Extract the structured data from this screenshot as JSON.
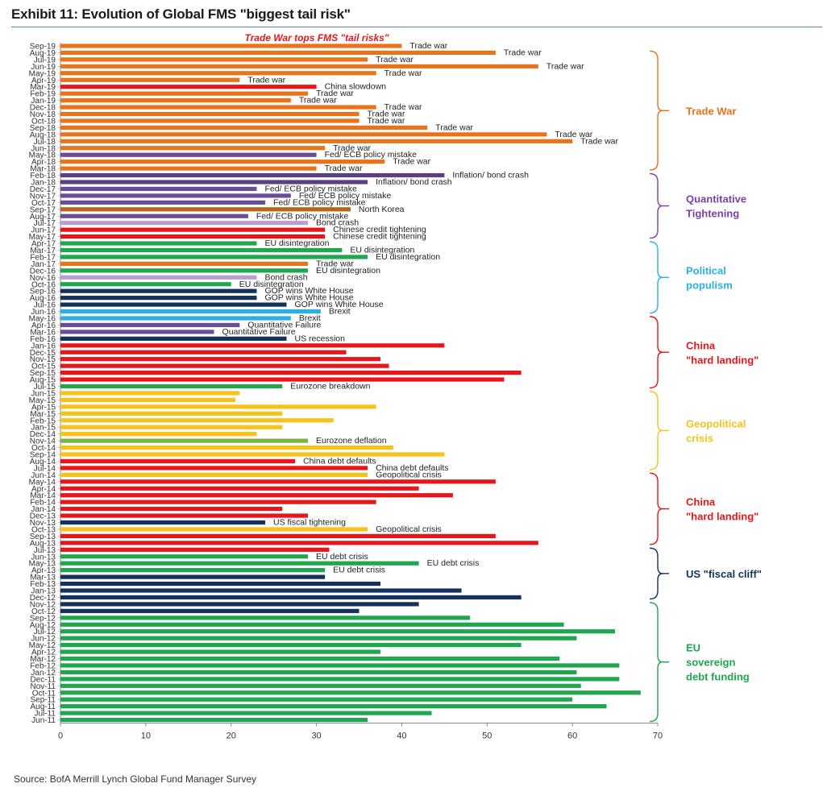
{
  "header": {
    "title": "Exhibit 11: Evolution of Global FMS \"biggest tail risk\""
  },
  "footer": {
    "source": "Source: BofA Merrill Lynch Global Fund Manager Survey"
  },
  "colors": {
    "Trade war": "#e8731b",
    "China slowdown": "#e8161a",
    "Fed/ ECB policy mistake": "#6b4c96",
    "Inflation/ bond crash": "#5a3f82",
    "North Korea": "#b8651c",
    "Bond crash": "#b6a0cf",
    "Chinese credit tightening": "#e8161a",
    "EU disintegration": "#1fa64f",
    "GOP wins White House": "#14315e",
    "Brexit": "#2bb0e6",
    "Quantitative Failure": "#6b4c96",
    "US recession": "#14315e",
    "China hard landing": "#e8161a",
    "Eurozone breakdown": "#1fa64f",
    "Geopolitical crisis": "#f7c21b",
    "Eurozone deflation": "#7cb342",
    "China debt defaults": "#e8161a",
    "US fiscal tightening": "#14315e",
    "EU debt crisis": "#1fa64f",
    "US fiscal cliff": "#14315e",
    "EU sovereign debt funding": "#1fa64f"
  },
  "chart_data": {
    "type": "bar",
    "orientation": "horizontal",
    "title": "Trade War tops FMS \"tail risks\"",
    "xlim": [
      0,
      70
    ],
    "xticks": [
      0,
      10,
      20,
      30,
      40,
      50,
      60,
      70
    ],
    "categories": [
      "Sep-19",
      "Aug-19",
      "Jul-19",
      "Jun-19",
      "May-19",
      "Apr-19",
      "Mar-19",
      "Feb-19",
      "Jan-19",
      "Dec-18",
      "Nov-18",
      "Oct-18",
      "Sep-18",
      "Aug-18",
      "Jul-18",
      "Jun-18",
      "May-18",
      "Apr-18",
      "Mar-18",
      "Feb-18",
      "Jan-18",
      "Dec-17",
      "Nov-17",
      "Oct-17",
      "Sep-17",
      "Aug-17",
      "Jul-17",
      "Jun-17",
      "May-17",
      "Apr-17",
      "Mar-17",
      "Feb-17",
      "Jan-17",
      "Dec-16",
      "Nov-16",
      "Oct-16",
      "Sep-16",
      "Aug-16",
      "Jul-16",
      "Jun-16",
      "May-16",
      "Apr-16",
      "Mar-16",
      "Feb-16",
      "Jan-16",
      "Dec-15",
      "Nov-15",
      "Oct-15",
      "Sep-15",
      "Aug-15",
      "Jul-15",
      "Jun-15",
      "May-15",
      "Apr-15",
      "Mar-15",
      "Feb-15",
      "Jan-15",
      "Dec-14",
      "Nov-14",
      "Oct-14",
      "Sep-14",
      "Aug-14",
      "Jul-14",
      "Jun-14",
      "May-14",
      "Apr-14",
      "Mar-14",
      "Feb-14",
      "Jan-14",
      "Dec-13",
      "Nov-13",
      "Oct-13",
      "Sep-13",
      "Aug-13",
      "Jul-13",
      "Jun-13",
      "May-13",
      "Apr-13",
      "Mar-13",
      "Feb-13",
      "Jan-13",
      "Dec-12",
      "Nov-12",
      "Oct-12",
      "Sep-12",
      "Aug-12",
      "Jul-12",
      "Jun-12",
      "May-12",
      "Apr-12",
      "Mar-12",
      "Feb-12",
      "Jan-12",
      "Dec-11",
      "Nov-11",
      "Oct-11",
      "Sep-11",
      "Aug-11",
      "Jul-11",
      "Jun-11"
    ],
    "values": [
      40,
      51,
      36,
      56,
      37,
      21,
      30,
      29,
      27,
      37,
      35,
      35,
      43,
      57,
      60,
      31,
      30,
      38,
      30,
      45,
      36,
      23,
      27,
      24,
      34,
      22,
      29,
      31,
      31,
      23,
      33,
      36,
      29,
      29,
      23,
      20,
      23,
      23,
      26.5,
      30.5,
      27,
      21,
      18,
      26.5,
      45,
      33.5,
      37.5,
      38.5,
      54,
      52,
      26,
      21,
      20.5,
      37,
      26,
      32,
      26,
      23,
      29,
      39,
      45,
      27.5,
      36,
      36,
      51,
      42,
      46,
      37,
      26,
      29,
      24,
      36,
      51,
      56,
      31.5,
      29,
      42,
      31,
      31,
      37.5,
      47,
      54,
      42,
      35,
      48,
      59,
      65,
      60.5,
      54,
      37.5,
      58.5,
      65.5,
      60.5,
      65.5,
      61,
      68,
      60,
      64,
      43.5,
      36
    ],
    "risks": [
      "Trade war",
      "Trade war",
      "Trade war",
      "Trade war",
      "Trade war",
      "Trade war",
      "China slowdown",
      "Trade war",
      "Trade war",
      "Trade war",
      "Trade war",
      "Trade war",
      "Trade war",
      "Trade war",
      "Trade war",
      "Trade war",
      "Fed/ ECB policy mistake",
      "Trade war",
      "Trade war",
      "Inflation/ bond crash",
      "Inflation/ bond crash",
      "Fed/ ECB policy mistake",
      "Fed/ ECB policy mistake",
      "Fed/ ECB policy mistake",
      "North Korea",
      "Fed/ ECB policy mistake",
      "Bond crash",
      "Chinese credit tightening",
      "Chinese credit tightening",
      "EU disintegration",
      "EU disintegration",
      "EU disintegration",
      "Trade war",
      "EU disintegration",
      "Bond crash",
      "EU disintegration",
      "GOP wins White House",
      "GOP wins White House",
      "GOP wins White House",
      "Brexit",
      "Brexit",
      "Quantitative Failure",
      "Quantitative Failure",
      "US recession",
      "China hard landing",
      "China hard landing",
      "China hard landing",
      "China hard landing",
      "China hard landing",
      "China hard landing",
      "Eurozone breakdown",
      "Geopolitical crisis",
      "Geopolitical crisis",
      "Geopolitical crisis",
      "Geopolitical crisis",
      "Geopolitical crisis",
      "Geopolitical crisis",
      "Geopolitical crisis",
      "Eurozone deflation",
      "Geopolitical crisis",
      "Geopolitical crisis",
      "China debt defaults",
      "China debt defaults",
      "Geopolitical crisis",
      "China hard landing",
      "China hard landing",
      "China hard landing",
      "China hard landing",
      "China hard landing",
      "China hard landing",
      "US fiscal tightening",
      "Geopolitical crisis",
      "China hard landing",
      "China hard landing",
      "China hard landing",
      "EU debt crisis",
      "EU debt crisis",
      "EU debt crisis",
      "US fiscal cliff",
      "US fiscal cliff",
      "US fiscal cliff",
      "US fiscal cliff",
      "US fiscal cliff",
      "US fiscal cliff",
      "EU sovereign debt funding",
      "EU sovereign debt funding",
      "EU sovereign debt funding",
      "EU sovereign debt funding",
      "EU sovereign debt funding",
      "EU sovereign debt funding",
      "EU sovereign debt funding",
      "EU sovereign debt funding",
      "EU sovereign debt funding",
      "EU sovereign debt funding",
      "EU sovereign debt funding",
      "EU sovereign debt funding",
      "EU sovereign debt funding",
      "EU sovereign debt funding",
      "EU sovereign debt funding",
      "EU sovereign debt funding"
    ],
    "bar_labels": [
      "Trade war",
      "Trade war",
      "Trade war",
      "Trade war",
      "Trade war",
      "Trade war",
      "China slowdown",
      "Trade war",
      "Trade war",
      "Trade war",
      "Trade war",
      "Trade war",
      "Trade war",
      "Trade war",
      "Trade war",
      "Trade war",
      "Fed/ ECB policy mistake",
      "Trade war",
      "Trade war",
      "Inflation/ bond crash",
      "Inflation/ bond crash",
      "Fed/ ECB policy mistake",
      "Fed/ ECB policy mistake",
      "Fed/ ECB policy mistake",
      "North Korea",
      "Fed/ ECB policy mistake",
      "Bond crash",
      "Chinese credit tightening",
      "Chinese credit tightening",
      "EU disintegration",
      "EU disintegration",
      "EU disintegration",
      "Trade war",
      "EU disintegration",
      "Bond crash",
      "EU disintegration",
      "GOP wins White House",
      "GOP wins White House",
      "GOP wins White House",
      "Brexit",
      "Brexit",
      "Quantitative Failure",
      "Quantitative Failure",
      "US recession",
      "",
      "",
      "",
      "",
      "",
      "",
      "Eurozone breakdown",
      "",
      "",
      "",
      "",
      "",
      "",
      "",
      "Eurozone deflation",
      "",
      "",
      "China debt defaults",
      "China debt defaults",
      "Geopolitical crisis",
      "",
      "",
      "",
      "",
      "",
      "",
      "US fiscal tightening",
      "Geopolitical crisis",
      "",
      "",
      "",
      "EU debt crisis",
      "EU debt crisis",
      "EU debt crisis",
      "",
      "",
      "",
      "",
      "",
      "",
      "",
      "",
      "",
      "",
      "",
      "",
      "",
      "",
      "",
      "",
      "",
      "",
      "",
      "",
      "",
      ""
    ],
    "groups": [
      {
        "label": [
          "Trade War"
        ],
        "color": "#e8731b",
        "from": 1,
        "to": 18
      },
      {
        "label": [
          "Quantitative",
          "Tightening"
        ],
        "color": "#7a3fa8",
        "from": 19,
        "to": 28
      },
      {
        "label": [
          "Political",
          "populism"
        ],
        "color": "#2bb0e6",
        "from": 29,
        "to": 39
      },
      {
        "label": [
          "China",
          "\"hard landing\""
        ],
        "color": "#e8161a",
        "from": 40,
        "to": 50
      },
      {
        "label": [
          "Geopolitical",
          "crisis"
        ],
        "color": "#f7c21b",
        "from": 51,
        "to": 62
      },
      {
        "label": [
          "China",
          "\"hard landing\""
        ],
        "color": "#e8161a",
        "from": 63,
        "to": 73
      },
      {
        "label": [
          "US \"fiscal cliff\""
        ],
        "color": "#14315e",
        "from": 74,
        "to": 81
      },
      {
        "label": [
          "EU",
          "sovereign",
          "debt funding"
        ],
        "color": "#1fa64f",
        "from": 82,
        "to": 99
      }
    ]
  }
}
